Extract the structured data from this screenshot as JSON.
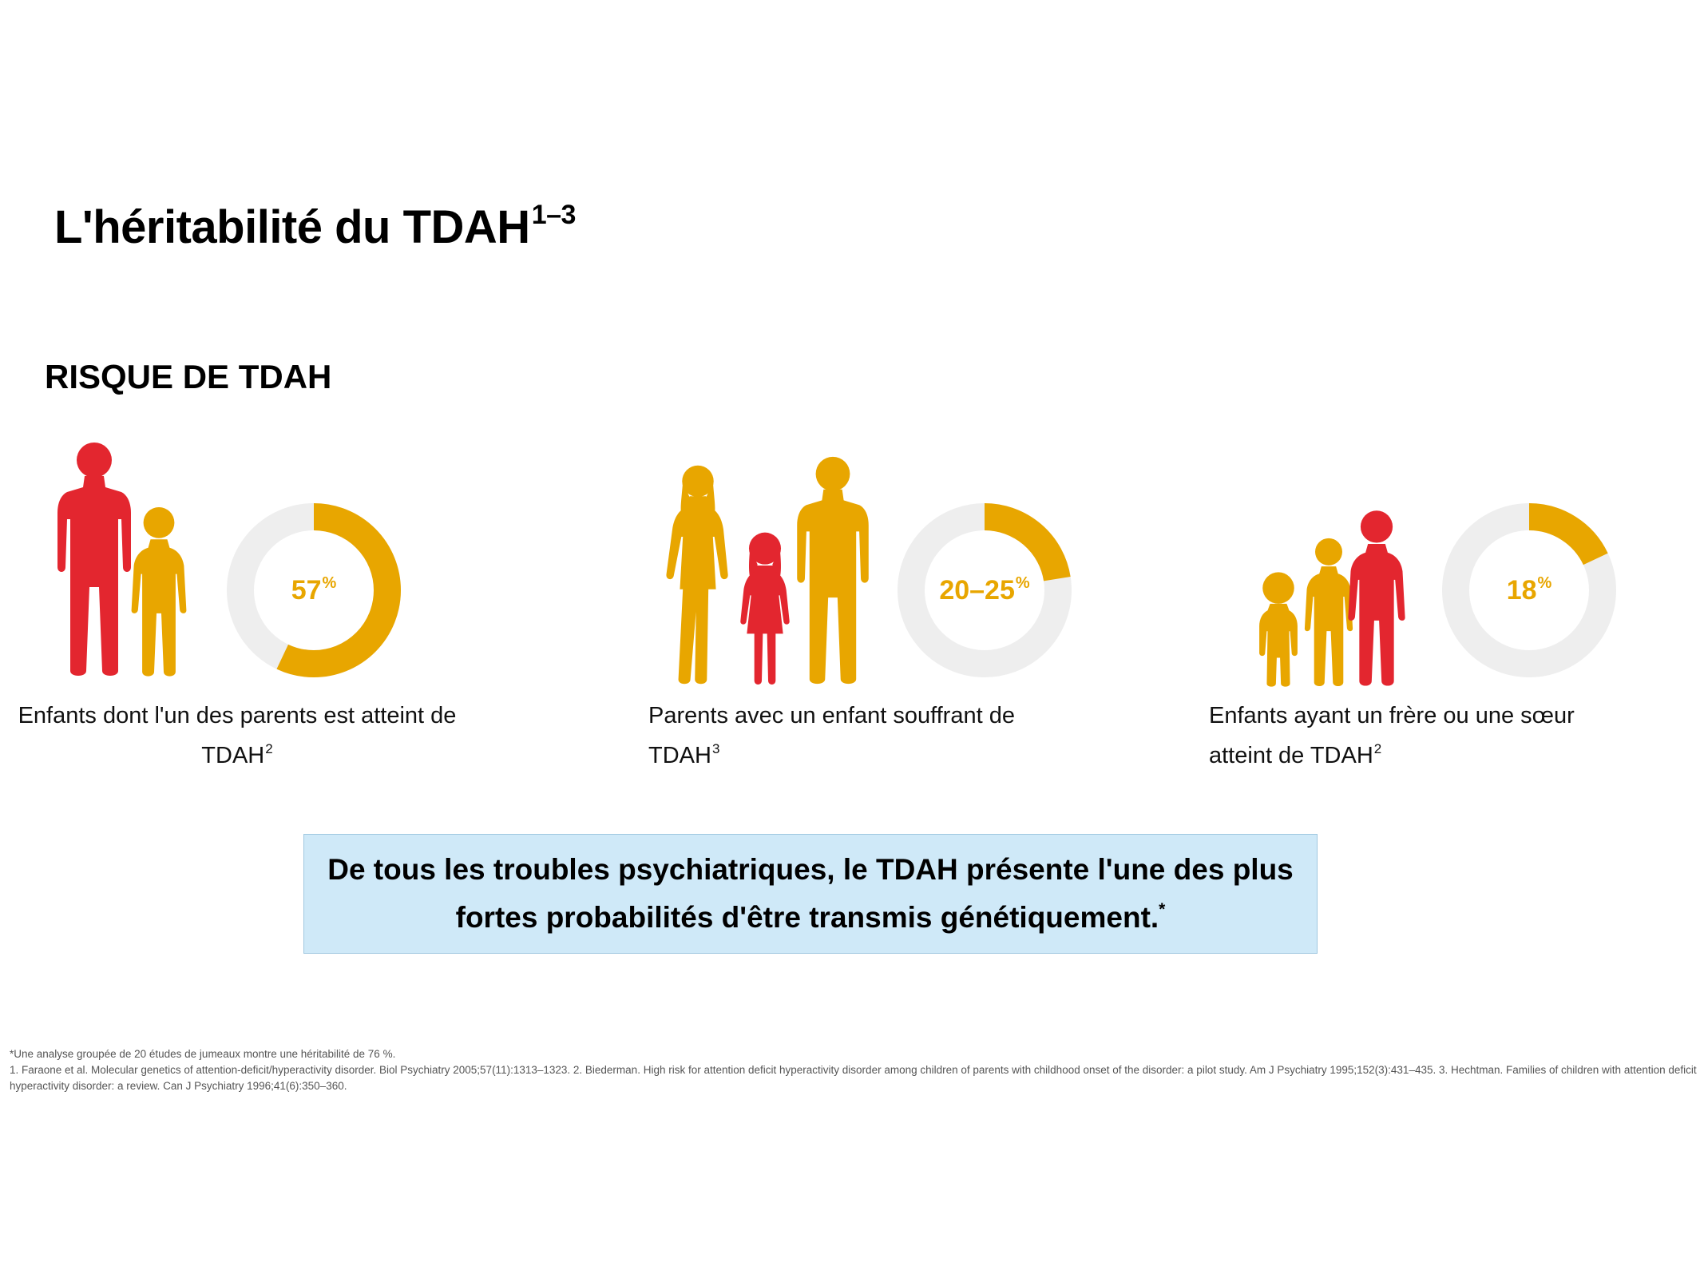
{
  "colors": {
    "red": "#e3262f",
    "yellow": "#e8a600",
    "ring_track": "#eeeeee",
    "callout_bg": "#cfe9f8"
  },
  "title": {
    "text": "L'héritabilité du TDAH",
    "sup": "1–3"
  },
  "section_label": "RISQUE DE TDAH",
  "stats": [
    {
      "value": 57,
      "value_label": "57",
      "unit": "%",
      "caption": "Enfants dont l'un des parents est atteint de TDAH",
      "caption_sup": "2",
      "figure": [
        "adult-red-icon",
        "child-yellow-icon"
      ]
    },
    {
      "value": 22.5,
      "value_label": "20–25",
      "unit": "%",
      "caption": "Parents avec un enfant souffrant de TDAH",
      "caption_sup": "3",
      "figure": [
        "woman-yellow-icon",
        "girl-red-icon",
        "man-yellow-icon"
      ]
    },
    {
      "value": 18,
      "value_label": "18",
      "unit": "%",
      "caption": "Enfants ayant un frère ou une sœur atteint de TDAH",
      "caption_sup": "2",
      "figure": [
        "toddler-yellow-icon",
        "child-yellow-icon",
        "child-red-icon"
      ]
    }
  ],
  "callout": {
    "text": "De tous les troubles psychiatriques, le TDAH présente l'une des plus fortes probabilités d'être transmis génétiquement.",
    "sup": "*"
  },
  "footnotes": {
    "note": "*Une analyse groupée de 20 études de jumeaux montre une héritabilité de 76 %.",
    "refs": "1. Faraone et al. Molecular genetics of attention-deficit/hyperactivity disorder. Biol Psychiatry 2005;57(11):1313–1323. 2. Biederman. High risk for attention deficit hyperactivity disorder among children of parents with childhood onset of the disorder: a pilot study. Am J Psychiatry 1995;152(3):431–435. 3. Hechtman. Families of children with attention deficit hyperactivity disorder: a review. Can J Psychiatry 1996;41(6):350–360."
  }
}
